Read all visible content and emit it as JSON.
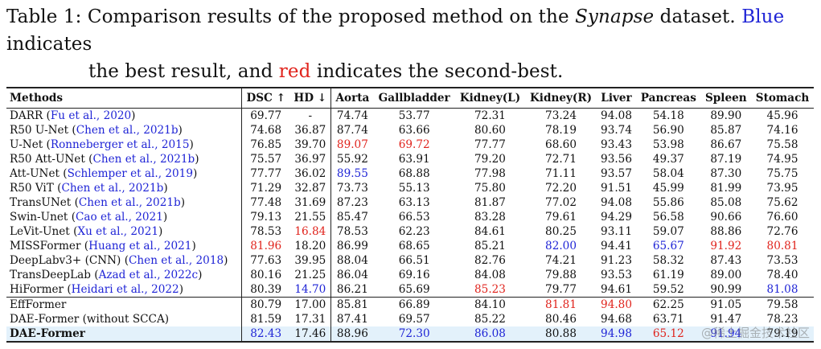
{
  "caption": {
    "prefix": "Table 1:",
    "text_a": "Comparison results of the proposed method on the",
    "dataset": "Synapse",
    "text_b": "dataset.",
    "blue_word": "Blue",
    "text_c": "indicates",
    "text_d": "the best result, and",
    "red_word": "red",
    "text_e": "indicates the second-best."
  },
  "columns": [
    "Methods",
    "DSC ↑",
    "HD ↓",
    "Aorta",
    "Gallbladder",
    "Kidney(L)",
    "Kidney(R)",
    "Liver",
    "Pancreas",
    "Spleen",
    "Stomach"
  ],
  "rows": [
    {
      "name": "DARR",
      "cite": "Fu et al., 2020",
      "cells": [
        {
          "v": "69.77"
        },
        {
          "v": "-"
        },
        {
          "v": "74.74"
        },
        {
          "v": "53.77"
        },
        {
          "v": "72.31"
        },
        {
          "v": "73.24"
        },
        {
          "v": "94.08"
        },
        {
          "v": "54.18"
        },
        {
          "v": "89.90"
        },
        {
          "v": "45.96"
        }
      ]
    },
    {
      "name": "R50 U-Net",
      "cite": "Chen et al., 2021b",
      "cells": [
        {
          "v": "74.68"
        },
        {
          "v": "36.87"
        },
        {
          "v": "87.74"
        },
        {
          "v": "63.66"
        },
        {
          "v": "80.60"
        },
        {
          "v": "78.19"
        },
        {
          "v": "93.74"
        },
        {
          "v": "56.90"
        },
        {
          "v": "85.87"
        },
        {
          "v": "74.16"
        }
      ]
    },
    {
      "name": "U-Net",
      "cite": "Ronneberger et al., 2015",
      "cells": [
        {
          "v": "76.85"
        },
        {
          "v": "39.70"
        },
        {
          "v": "89.07",
          "c": "red"
        },
        {
          "v": "69.72",
          "c": "red"
        },
        {
          "v": "77.77"
        },
        {
          "v": "68.60"
        },
        {
          "v": "93.43"
        },
        {
          "v": "53.98"
        },
        {
          "v": "86.67"
        },
        {
          "v": "75.58"
        }
      ]
    },
    {
      "name": "R50 Att-UNet",
      "cite": "Chen et al., 2021b",
      "cells": [
        {
          "v": "75.57"
        },
        {
          "v": "36.97"
        },
        {
          "v": "55.92"
        },
        {
          "v": "63.91"
        },
        {
          "v": "79.20"
        },
        {
          "v": "72.71"
        },
        {
          "v": "93.56"
        },
        {
          "v": "49.37"
        },
        {
          "v": "87.19"
        },
        {
          "v": "74.95"
        }
      ]
    },
    {
      "name": "Att-UNet",
      "cite": "Schlemper et al., 2019",
      "cells": [
        {
          "v": "77.77"
        },
        {
          "v": "36.02"
        },
        {
          "v": "89.55",
          "c": "blue"
        },
        {
          "v": "68.88"
        },
        {
          "v": "77.98"
        },
        {
          "v": "71.11"
        },
        {
          "v": "93.57"
        },
        {
          "v": "58.04"
        },
        {
          "v": "87.30"
        },
        {
          "v": "75.75"
        }
      ]
    },
    {
      "name": "R50 ViT",
      "cite": "Chen et al., 2021b",
      "cells": [
        {
          "v": "71.29"
        },
        {
          "v": "32.87"
        },
        {
          "v": "73.73"
        },
        {
          "v": "55.13"
        },
        {
          "v": "75.80"
        },
        {
          "v": "72.20"
        },
        {
          "v": "91.51"
        },
        {
          "v": "45.99"
        },
        {
          "v": "81.99"
        },
        {
          "v": "73.95"
        }
      ]
    },
    {
      "name": "TransUNet",
      "cite": "Chen et al., 2021b",
      "cells": [
        {
          "v": "77.48"
        },
        {
          "v": "31.69"
        },
        {
          "v": "87.23"
        },
        {
          "v": "63.13"
        },
        {
          "v": "81.87"
        },
        {
          "v": "77.02"
        },
        {
          "v": "94.08"
        },
        {
          "v": "55.86"
        },
        {
          "v": "85.08"
        },
        {
          "v": "75.62"
        }
      ]
    },
    {
      "name": "Swin-Unet",
      "cite": "Cao et al., 2021",
      "cells": [
        {
          "v": "79.13"
        },
        {
          "v": "21.55"
        },
        {
          "v": "85.47"
        },
        {
          "v": "66.53"
        },
        {
          "v": "83.28"
        },
        {
          "v": "79.61"
        },
        {
          "v": "94.29"
        },
        {
          "v": "56.58"
        },
        {
          "v": "90.66"
        },
        {
          "v": "76.60"
        }
      ]
    },
    {
      "name": "LeVit-Unet",
      "cite": "Xu et al., 2021",
      "cells": [
        {
          "v": "78.53"
        },
        {
          "v": "16.84",
          "c": "red"
        },
        {
          "v": "78.53"
        },
        {
          "v": "62.23"
        },
        {
          "v": "84.61"
        },
        {
          "v": "80.25"
        },
        {
          "v": "93.11"
        },
        {
          "v": "59.07"
        },
        {
          "v": "88.86"
        },
        {
          "v": "72.76"
        }
      ]
    },
    {
      "name": "MISSFormer",
      "cite": "Huang et al., 2021",
      "cells": [
        {
          "v": "81.96",
          "c": "red"
        },
        {
          "v": "18.20"
        },
        {
          "v": "86.99"
        },
        {
          "v": "68.65"
        },
        {
          "v": "85.21"
        },
        {
          "v": "82.00",
          "c": "blue"
        },
        {
          "v": "94.41"
        },
        {
          "v": "65.67",
          "c": "blue"
        },
        {
          "v": "91.92",
          "c": "red"
        },
        {
          "v": "80.81",
          "c": "red"
        }
      ]
    },
    {
      "name": "DeepLabv3+ (CNN)",
      "cite": "Chen et al., 2018",
      "cells": [
        {
          "v": "77.63"
        },
        {
          "v": "39.95"
        },
        {
          "v": "88.04"
        },
        {
          "v": "66.51"
        },
        {
          "v": "82.76"
        },
        {
          "v": "74.21"
        },
        {
          "v": "91.23"
        },
        {
          "v": "58.32"
        },
        {
          "v": "87.43"
        },
        {
          "v": "73.53"
        }
      ]
    },
    {
      "name": "TransDeepLab",
      "cite": "Azad et al., 2022c",
      "cells": [
        {
          "v": "80.16"
        },
        {
          "v": "21.25"
        },
        {
          "v": "86.04"
        },
        {
          "v": "69.16"
        },
        {
          "v": "84.08"
        },
        {
          "v": "79.88"
        },
        {
          "v": "93.53"
        },
        {
          "v": "61.19"
        },
        {
          "v": "89.00"
        },
        {
          "v": "78.40"
        }
      ]
    },
    {
      "name": "HiFormer",
      "cite": "Heidari et al., 2022",
      "cells": [
        {
          "v": "80.39"
        },
        {
          "v": "14.70",
          "c": "blue"
        },
        {
          "v": "86.21"
        },
        {
          "v": "65.69"
        },
        {
          "v": "85.23",
          "c": "red"
        },
        {
          "v": "79.77"
        },
        {
          "v": "94.61"
        },
        {
          "v": "59.52"
        },
        {
          "v": "90.99"
        },
        {
          "v": "81.08",
          "c": "blue"
        }
      ]
    },
    {
      "name": "EffFormer",
      "cite": "",
      "sep": true,
      "cells": [
        {
          "v": "80.79"
        },
        {
          "v": "17.00"
        },
        {
          "v": "85.81"
        },
        {
          "v": "66.89"
        },
        {
          "v": "84.10"
        },
        {
          "v": "81.81",
          "c": "red"
        },
        {
          "v": "94.80",
          "c": "red"
        },
        {
          "v": "62.25"
        },
        {
          "v": "91.05"
        },
        {
          "v": "79.58"
        }
      ]
    },
    {
      "name": "DAE-Former (without SCCA)",
      "cite": "",
      "cells": [
        {
          "v": "81.59"
        },
        {
          "v": "17.31"
        },
        {
          "v": "87.41"
        },
        {
          "v": "69.57"
        },
        {
          "v": "85.22"
        },
        {
          "v": "80.46"
        },
        {
          "v": "94.68"
        },
        {
          "v": "63.71"
        },
        {
          "v": "91.47"
        },
        {
          "v": "78.23"
        }
      ]
    },
    {
      "name": "DAE-Former",
      "cite": "",
      "last": true,
      "cells": [
        {
          "v": "82.43",
          "c": "blue"
        },
        {
          "v": "17.46"
        },
        {
          "v": "88.96"
        },
        {
          "v": "72.30",
          "c": "blue"
        },
        {
          "v": "86.08",
          "c": "blue"
        },
        {
          "v": "80.88"
        },
        {
          "v": "94.98",
          "c": "blue"
        },
        {
          "v": "65.12",
          "c": "red"
        },
        {
          "v": "91.94",
          "c": "blue"
        },
        {
          "v": "79.19"
        }
      ]
    }
  ],
  "watermark": "@稀土掘金技术社区",
  "colors": {
    "best": "#1f24d6",
    "second": "#e0231c",
    "highlight_row": "#e3f1fb"
  }
}
